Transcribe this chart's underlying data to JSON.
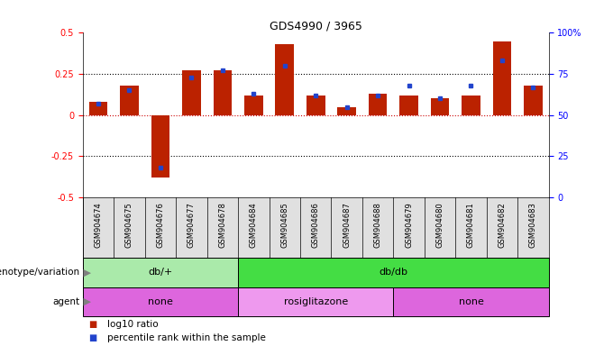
{
  "title": "GDS4990 / 3965",
  "samples": [
    "GSM904674",
    "GSM904675",
    "GSM904676",
    "GSM904677",
    "GSM904678",
    "GSM904684",
    "GSM904685",
    "GSM904686",
    "GSM904687",
    "GSM904688",
    "GSM904679",
    "GSM904680",
    "GSM904681",
    "GSM904682",
    "GSM904683"
  ],
  "log10_ratio": [
    0.08,
    0.18,
    -0.38,
    0.27,
    0.27,
    0.12,
    0.43,
    0.12,
    0.05,
    0.13,
    0.12,
    0.1,
    0.12,
    0.45,
    0.18
  ],
  "percentile_rank": [
    57,
    65,
    18,
    73,
    77,
    63,
    80,
    62,
    55,
    62,
    68,
    60,
    68,
    83,
    67
  ],
  "bar_color": "#bb2200",
  "dot_color": "#2244cc",
  "ylim_left": [
    -0.5,
    0.5
  ],
  "yticks_left": [
    -0.5,
    -0.25,
    0,
    0.25,
    0.5
  ],
  "ylim_right": [
    0,
    100
  ],
  "yticks_right": [
    0,
    25,
    50,
    75,
    100
  ],
  "yticklabels_right": [
    "0",
    "25",
    "50",
    "75",
    "100%"
  ],
  "genotype_groups": [
    {
      "label": "db/+",
      "start": 0,
      "end": 5,
      "color": "#aaeaaa"
    },
    {
      "label": "db/db",
      "start": 5,
      "end": 15,
      "color": "#44dd44"
    }
  ],
  "agent_groups": [
    {
      "label": "none",
      "start": 0,
      "end": 5,
      "color": "#dd66dd"
    },
    {
      "label": "rosiglitazone",
      "start": 5,
      "end": 10,
      "color": "#ee99ee"
    },
    {
      "label": "none",
      "start": 10,
      "end": 15,
      "color": "#dd66dd"
    }
  ],
  "legend_bar_label": "log10 ratio",
  "legend_dot_label": "percentile rank within the sample",
  "title_fontsize": 9,
  "axis_fontsize": 7,
  "tick_fontsize": 7,
  "label_fontsize": 7.5,
  "annot_fontsize": 8
}
